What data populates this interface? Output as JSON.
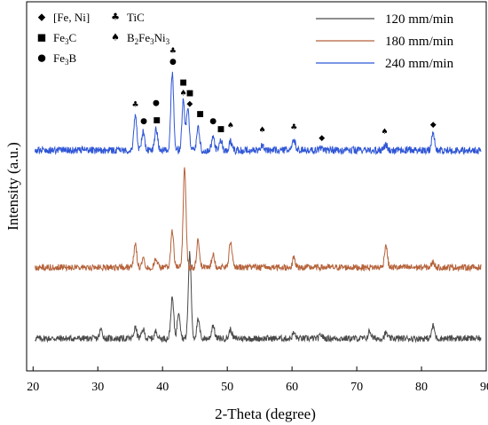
{
  "chart_data": {
    "type": "line",
    "xlabel": "2-Theta (degree)",
    "ylabel": "Intensity (a.u.)",
    "xlim": [
      19,
      90
    ],
    "x_ticks": [
      20,
      30,
      40,
      50,
      60,
      70,
      80,
      90
    ],
    "series": [
      {
        "name": "120 mm/min",
        "color": "#4a4a4a",
        "baseline": 0.36,
        "noise": 0.035,
        "peaks": [
          [
            30.5,
            0.1
          ],
          [
            35.8,
            0.12
          ],
          [
            37.0,
            0.1
          ],
          [
            39.0,
            0.08
          ],
          [
            41.5,
            0.45
          ],
          [
            42.5,
            0.3
          ],
          [
            44.2,
            0.95
          ],
          [
            45.5,
            0.2
          ],
          [
            47.8,
            0.15
          ],
          [
            50.5,
            0.1
          ],
          [
            60.3,
            0.06
          ],
          [
            64.5,
            0.04
          ],
          [
            72.0,
            0.08
          ],
          [
            74.5,
            0.06
          ],
          [
            81.8,
            0.14
          ]
        ]
      },
      {
        "name": "180 mm/min",
        "color": "#b5623a",
        "baseline": 1.15,
        "noise": 0.035,
        "peaks": [
          [
            35.8,
            0.25
          ],
          [
            37.0,
            0.1
          ],
          [
            39.0,
            0.1
          ],
          [
            41.5,
            0.4
          ],
          [
            43.4,
            1.1
          ],
          [
            45.5,
            0.3
          ],
          [
            47.8,
            0.15
          ],
          [
            50.5,
            0.3
          ],
          [
            60.3,
            0.1
          ],
          [
            74.5,
            0.25
          ],
          [
            81.8,
            0.06
          ]
        ]
      },
      {
        "name": "240 mm/min",
        "color": "#2f56d6",
        "baseline": 2.45,
        "noise": 0.04,
        "peaks": [
          [
            35.8,
            0.4
          ],
          [
            37.0,
            0.2
          ],
          [
            39.0,
            0.25
          ],
          [
            41.5,
            0.85
          ],
          [
            43.2,
            0.55
          ],
          [
            43.9,
            0.45
          ],
          [
            45.5,
            0.25
          ],
          [
            47.8,
            0.15
          ],
          [
            49.0,
            0.1
          ],
          [
            50.5,
            0.1
          ],
          [
            55.4,
            0.06
          ],
          [
            60.3,
            0.12
          ],
          [
            64.5,
            0.04
          ],
          [
            74.5,
            0.06
          ],
          [
            81.8,
            0.2
          ]
        ]
      }
    ],
    "phase_legend": [
      {
        "symbol": "diamond",
        "label": "[Fe, Ni]"
      },
      {
        "symbol": "square",
        "label": "Fe",
        "sub": "3",
        "label2": "C"
      },
      {
        "symbol": "circle",
        "label": "Fe",
        "sub": "3",
        "label2": "B"
      },
      {
        "symbol": "club",
        "label": "TiC"
      },
      {
        "symbol": "spade",
        "label": "B",
        "sub": "2",
        "label2": "Fe",
        "sub2": "3",
        "label3": "Ni",
        "sub3": "3"
      }
    ],
    "phase_markers": [
      {
        "symbol": "club",
        "x": 35.8,
        "y": 2.95
      },
      {
        "symbol": "circle",
        "x": 37.1,
        "y": 2.77
      },
      {
        "symbol": "circle",
        "x": 39.0,
        "y": 2.97
      },
      {
        "symbol": "square",
        "x": 39.1,
        "y": 2.78
      },
      {
        "symbol": "club",
        "x": 41.6,
        "y": 3.55
      },
      {
        "symbol": "circle",
        "x": 41.6,
        "y": 3.43
      },
      {
        "symbol": "square",
        "x": 43.2,
        "y": 3.2
      },
      {
        "symbol": "spade",
        "x": 43.2,
        "y": 3.08
      },
      {
        "symbol": "square",
        "x": 44.2,
        "y": 3.08
      },
      {
        "symbol": "diamond",
        "x": 44.2,
        "y": 2.96
      },
      {
        "symbol": "square",
        "x": 45.8,
        "y": 2.85
      },
      {
        "symbol": "circle",
        "x": 47.8,
        "y": 2.77
      },
      {
        "symbol": "square",
        "x": 49.0,
        "y": 2.68
      },
      {
        "symbol": "spade",
        "x": 50.5,
        "y": 2.72
      },
      {
        "symbol": "spade",
        "x": 55.4,
        "y": 2.67
      },
      {
        "symbol": "club",
        "x": 60.3,
        "y": 2.7
      },
      {
        "symbol": "diamond",
        "x": 64.6,
        "y": 2.58
      },
      {
        "symbol": "spade",
        "x": 74.3,
        "y": 2.65
      },
      {
        "symbol": "diamond",
        "x": 81.8,
        "y": 2.73
      }
    ]
  }
}
